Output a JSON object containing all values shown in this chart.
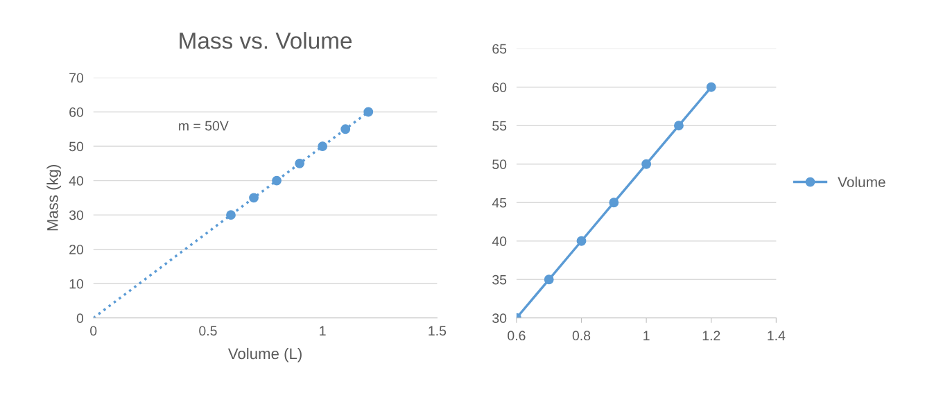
{
  "chart_data": [
    {
      "type": "scatter",
      "title": "Mass vs. Volume",
      "xlabel": "Volume (L)",
      "ylabel": "Mass (kg)",
      "annotations": [
        "m = 50V"
      ],
      "x": [
        0.6,
        0.7,
        0.8,
        0.9,
        1.0,
        1.1,
        1.2
      ],
      "series": [
        {
          "color": "#5b9bd5",
          "values": [
            30,
            35,
            40,
            45,
            50,
            55,
            60
          ],
          "marker": "circle"
        },
        {
          "type": "line",
          "color": "#5b9bd5",
          "x": [
            0,
            1.2
          ],
          "values": [
            0,
            60
          ],
          "line_style": "dotted",
          "marker": "none"
        }
      ],
      "xlim": [
        0,
        1.5
      ],
      "xticks": [
        0,
        0.5,
        1,
        1.5
      ],
      "ylim": [
        0,
        70
      ],
      "yticks": [
        0,
        10,
        20,
        30,
        40,
        50,
        60,
        70
      ],
      "grid": "y",
      "legend": false
    },
    {
      "type": "line",
      "x": [
        0.6,
        0.7,
        0.8,
        0.9,
        1.0,
        1.1,
        1.2
      ],
      "series": [
        {
          "name": "Volume",
          "color": "#5b9bd5",
          "values": [
            30,
            35,
            40,
            45,
            50,
            55,
            60
          ]
        }
      ],
      "marker": "circle",
      "line_style": "solid",
      "xlim": [
        0.6,
        1.4
      ],
      "xticks": [
        0.6,
        0.8,
        1,
        1.2,
        1.4
      ],
      "ylim": [
        30,
        65
      ],
      "yticks": [
        30,
        35,
        40,
        45,
        50,
        55,
        60,
        65
      ],
      "grid": "y",
      "legend": "right"
    }
  ]
}
